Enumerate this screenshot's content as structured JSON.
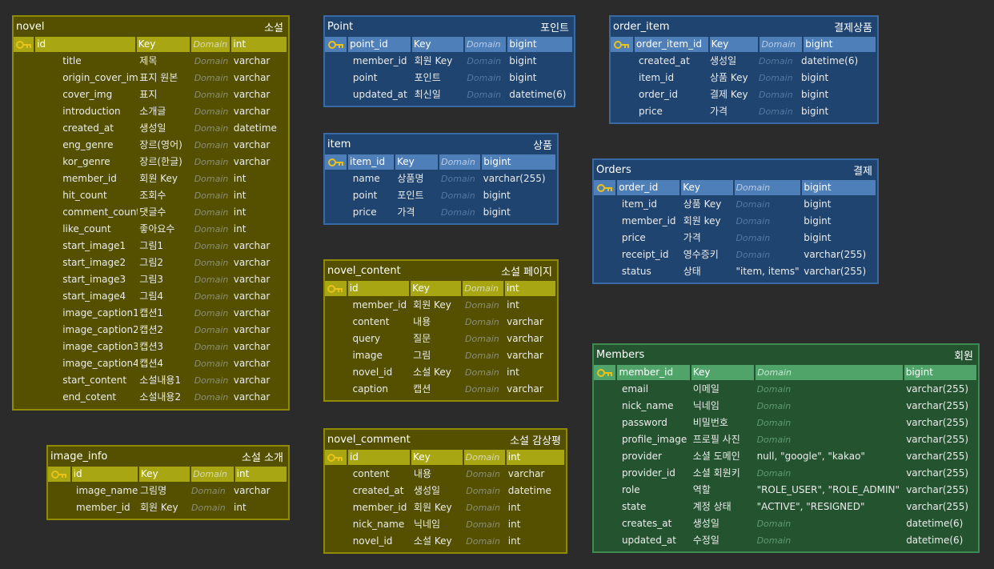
{
  "tables": {
    "novel": {
      "name": "novel",
      "label": "소설",
      "columns": [
        {
          "name": "id",
          "key": "Key",
          "domain": "Domain",
          "type": "int"
        },
        {
          "name": "title",
          "key": "제목",
          "domain": "Domain",
          "type": "varchar"
        },
        {
          "name": "origin_cover_img",
          "key": "표지 원본",
          "domain": "Domain",
          "type": "varchar"
        },
        {
          "name": "cover_img",
          "key": "표지",
          "domain": "Domain",
          "type": "varchar"
        },
        {
          "name": "introduction",
          "key": "소개글",
          "domain": "Domain",
          "type": "varchar"
        },
        {
          "name": "created_at",
          "key": "생성일",
          "domain": "Domain",
          "type": "datetime"
        },
        {
          "name": "eng_genre",
          "key": "장르(영어)",
          "domain": "Domain",
          "type": "varchar"
        },
        {
          "name": "kor_genre",
          "key": "장르(한글)",
          "domain": "Domain",
          "type": "varchar"
        },
        {
          "name": "member_id",
          "key": "회원 Key",
          "domain": "Domain",
          "type": "int"
        },
        {
          "name": "hit_count",
          "key": "조회수",
          "domain": "Domain",
          "type": "int"
        },
        {
          "name": "comment_count",
          "key": "댓글수",
          "domain": "Domain",
          "type": "int"
        },
        {
          "name": "like_count",
          "key": "좋아요수",
          "domain": "Domain",
          "type": "int"
        },
        {
          "name": "start_image1",
          "key": "그림1",
          "domain": "Domain",
          "type": "varchar"
        },
        {
          "name": "start_image2",
          "key": "그림2",
          "domain": "Domain",
          "type": "varchar"
        },
        {
          "name": "start_image3",
          "key": "그림3",
          "domain": "Domain",
          "type": "varchar"
        },
        {
          "name": "start_image4",
          "key": "그림4",
          "domain": "Domain",
          "type": "varchar"
        },
        {
          "name": "image_caption1",
          "key": "캡션1",
          "domain": "Domain",
          "type": "varchar"
        },
        {
          "name": "image_caption2",
          "key": "캡션2",
          "domain": "Domain",
          "type": "varchar"
        },
        {
          "name": "image_caption3",
          "key": "캡션3",
          "domain": "Domain",
          "type": "varchar"
        },
        {
          "name": "image_caption4",
          "key": "캡션4",
          "domain": "Domain",
          "type": "varchar"
        },
        {
          "name": "start_content",
          "key": "소설내용1",
          "domain": "Domain",
          "type": "varchar"
        },
        {
          "name": "end_cotent",
          "key": "소설내용2",
          "domain": "Domain",
          "type": "varchar"
        }
      ]
    },
    "image_info": {
      "name": "image_info",
      "label": "소설 소개",
      "columns": [
        {
          "name": "id",
          "key": "Key",
          "domain": "Domain",
          "type": "int"
        },
        {
          "name": "image_name",
          "key": "그림명",
          "domain": "Domain",
          "type": "varchar"
        },
        {
          "name": "member_id",
          "key": "회원 Key",
          "domain": "Domain",
          "type": "int"
        }
      ]
    },
    "point": {
      "name": "Point",
      "label": "포인트",
      "columns": [
        {
          "name": "point_id",
          "key": "Key",
          "domain": "Domain",
          "type": "bigint"
        },
        {
          "name": "member_id",
          "key": "회원 Key",
          "domain": "Domain",
          "type": "bigint"
        },
        {
          "name": "point",
          "key": "포인트",
          "domain": "Domain",
          "type": "bigint"
        },
        {
          "name": "updated_at",
          "key": "최신일",
          "domain": "Domain",
          "type": "datetime(6)"
        }
      ]
    },
    "item": {
      "name": "item",
      "label": "상품",
      "columns": [
        {
          "name": "item_id",
          "key": "Key",
          "domain": "Domain",
          "type": "bigint"
        },
        {
          "name": "name",
          "key": "상품명",
          "domain": "Domain",
          "type": "varchar(255)"
        },
        {
          "name": "point",
          "key": "포인트",
          "domain": "Domain",
          "type": "bigint"
        },
        {
          "name": "price",
          "key": "가격",
          "domain": "Domain",
          "type": "bigint"
        }
      ]
    },
    "novel_content": {
      "name": "novel_content",
      "label": "소설 페이지",
      "columns": [
        {
          "name": "id",
          "key": "Key",
          "domain": "Domain",
          "type": "int"
        },
        {
          "name": "member_id",
          "key": "회원 Key",
          "domain": "Domain",
          "type": "int"
        },
        {
          "name": "content",
          "key": "내용",
          "domain": "Domain",
          "type": "varchar"
        },
        {
          "name": "query",
          "key": "질문",
          "domain": "Domain",
          "type": "varchar"
        },
        {
          "name": "image",
          "key": "그림",
          "domain": "Domain",
          "type": "varchar"
        },
        {
          "name": "novel_id",
          "key": "소설 Key",
          "domain": "Domain",
          "type": "int"
        },
        {
          "name": "caption",
          "key": "캡션",
          "domain": "Domain",
          "type": "varchar"
        }
      ]
    },
    "novel_comment": {
      "name": "novel_comment",
      "label": "소설 감상평",
      "columns": [
        {
          "name": "id",
          "key": "Key",
          "domain": "Domain",
          "type": "int"
        },
        {
          "name": "content",
          "key": "내용",
          "domain": "Domain",
          "type": "varchar"
        },
        {
          "name": "created_at",
          "key": "생성일",
          "domain": "Domain",
          "type": "datetime"
        },
        {
          "name": "member_id",
          "key": "회원 Key",
          "domain": "Domain",
          "type": "int"
        },
        {
          "name": "nick_name",
          "key": "닉네임",
          "domain": "Domain",
          "type": "int"
        },
        {
          "name": "novel_id",
          "key": "소설 Key",
          "domain": "Domain",
          "type": "int"
        }
      ]
    },
    "order_item": {
      "name": "order_item",
      "label": "결제상품",
      "columns": [
        {
          "name": "order_item_id",
          "key": "Key",
          "domain": "Domain",
          "type": "bigint"
        },
        {
          "name": "created_at",
          "key": "생성일",
          "domain": "Domain",
          "type": "datetime(6)"
        },
        {
          "name": "item_id",
          "key": "상품 Key",
          "domain": "Domain",
          "type": "bigint"
        },
        {
          "name": "order_id",
          "key": "결제 Key",
          "domain": "Domain",
          "type": "bigint"
        },
        {
          "name": "price",
          "key": "가격",
          "domain": "Domain",
          "type": "bigint"
        }
      ]
    },
    "orders": {
      "name": "Orders",
      "label": "결제",
      "columns": [
        {
          "name": "order_id",
          "key": "Key",
          "domain": "Domain",
          "type": "bigint"
        },
        {
          "name": "item_id",
          "key": "상품 Key",
          "domain": "Domain",
          "type": "bigint"
        },
        {
          "name": "member_id",
          "key": "회원 key",
          "domain": "Domain",
          "type": "bigint"
        },
        {
          "name": "price",
          "key": "가격",
          "domain": "Domain",
          "type": "bigint"
        },
        {
          "name": "receipt_id",
          "key": "영수증키",
          "domain": "Domain",
          "type": "varchar(255)"
        },
        {
          "name": "status",
          "key": "상태",
          "domain": "\"item, items\"",
          "type": "varchar(255)"
        }
      ]
    },
    "members": {
      "name": "Members",
      "label": "회원",
      "columns": [
        {
          "name": "member_id",
          "key": "Key",
          "domain": "Domain",
          "type": "bigint"
        },
        {
          "name": "email",
          "key": "이메일",
          "domain": "Domain",
          "type": "varchar(255)"
        },
        {
          "name": "nick_name",
          "key": "닉네임",
          "domain": "Domain",
          "type": "varchar(255)"
        },
        {
          "name": "password",
          "key": "비밀번호",
          "domain": "Domain",
          "type": "varchar(255)"
        },
        {
          "name": "profile_image",
          "key": "프로필 사진",
          "domain": "Domain",
          "type": "varchar(255)"
        },
        {
          "name": "provider",
          "key": "소셜 도메인",
          "domain": "null, \"google\", \"kakao\"",
          "type": "varchar(255)"
        },
        {
          "name": "provider_id",
          "key": "소셜 회원키",
          "domain": "Domain",
          "type": "varchar(255)"
        },
        {
          "name": "role",
          "key": "역할",
          "domain": "\"ROLE_USER\", \"ROLE_ADMIN\"",
          "type": "varchar(255)"
        },
        {
          "name": "state",
          "key": "계정 상태",
          "domain": "\"ACTIVE\", \"RESIGNED\"",
          "type": "varchar(255)"
        },
        {
          "name": "creates_at",
          "key": "생성일",
          "domain": "Domain",
          "type": "datetime(6)"
        },
        {
          "name": "updated_at",
          "key": "수정일",
          "domain": "Domain",
          "type": "datetime(6)"
        }
      ]
    }
  },
  "colors": {
    "background": "#2b2b2b",
    "olive_table": "#545000",
    "olive_pk": "#a9a613",
    "blue_table": "#1f4470",
    "blue_pk": "#4f7fb8",
    "green_table": "#24542f",
    "green_pk": "#50a46a",
    "key_icon": "#e8c21a"
  },
  "icons": {
    "primary_key": "key-icon"
  }
}
